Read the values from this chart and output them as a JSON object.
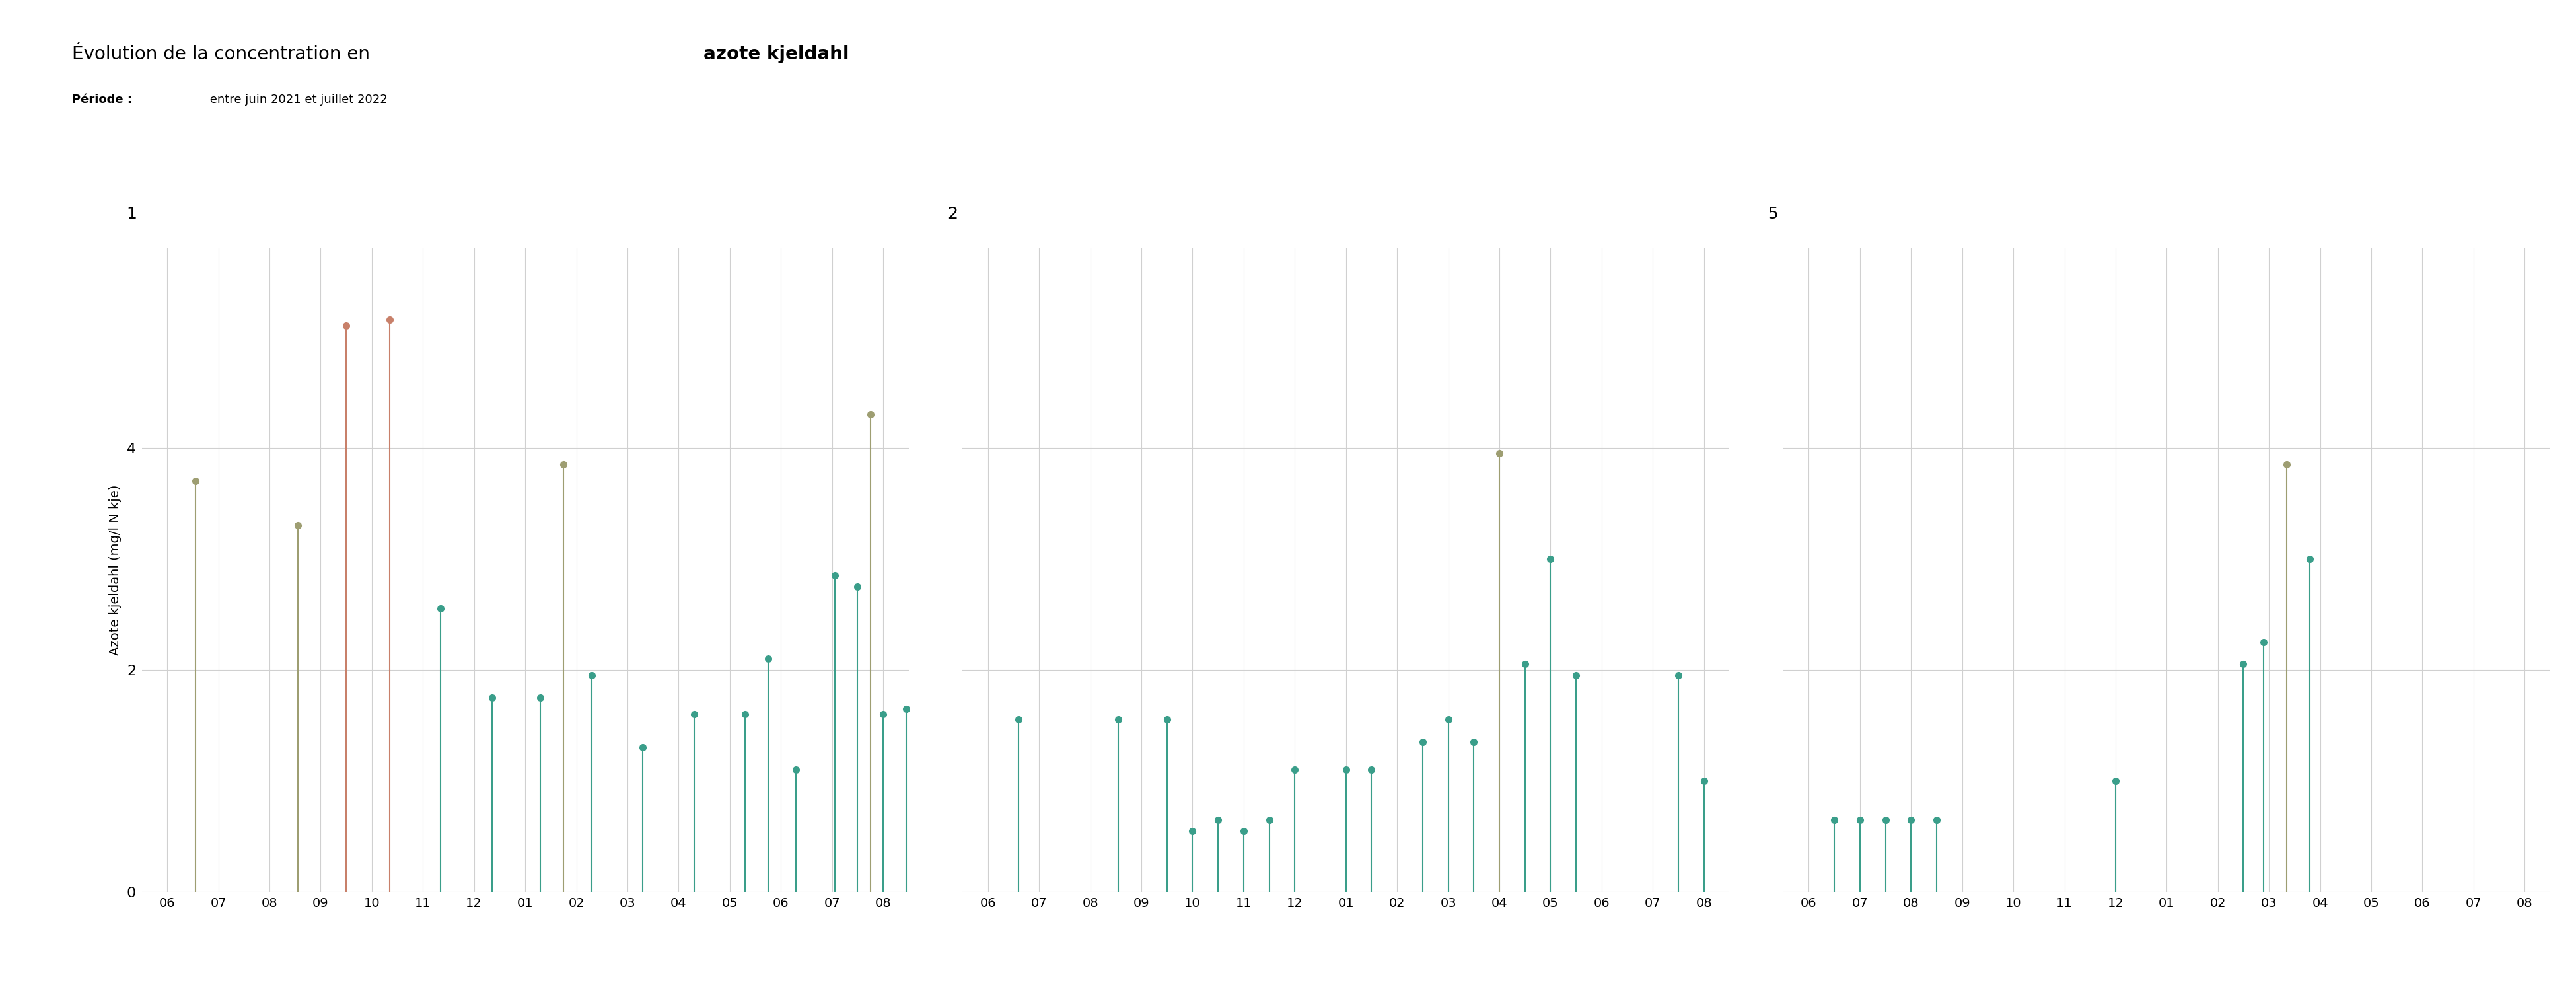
{
  "title_plain": "Évolution de la concentration en ",
  "title_bold": "azote kjeldahl",
  "subtitle_bold": "Période :",
  "subtitle_plain": " entre juin 2021 et juillet 2022",
  "ylabel": "Azote kjeldahl (mg/l N kje)",
  "xtick_labels": [
    "06",
    "07",
    "08",
    "09",
    "10",
    "11",
    "12",
    "01",
    "02",
    "03",
    "04",
    "05",
    "06",
    "07",
    "08"
  ],
  "ylim": [
    0,
    5.8
  ],
  "yticks": [
    0,
    2,
    4
  ],
  "background_color": "#ffffff",
  "grid_color": "#d0d0d0",
  "color_salmon": "#c8806a",
  "color_olive": "#9e9e72",
  "color_teal": "#3a9e8a",
  "panel1": {
    "x_indices": [
      0.55,
      2.55,
      3.5,
      4.35,
      5.35,
      6.35,
      7.3,
      8.3,
      9.3,
      10.3,
      11.3,
      11.75,
      12.3,
      13.05,
      13.5,
      14.0,
      14.45,
      13.75,
      7.75
    ],
    "values": [
      3.7,
      3.3,
      5.1,
      5.15,
      2.55,
      1.75,
      1.75,
      1.95,
      1.3,
      1.6,
      1.6,
      2.1,
      1.1,
      2.85,
      2.75,
      1.6,
      1.65,
      4.3,
      3.85
    ],
    "colors": [
      "#9e9e72",
      "#9e9e72",
      "#c8806a",
      "#c8806a",
      "#3a9e8a",
      "#3a9e8a",
      "#3a9e8a",
      "#3a9e8a",
      "#3a9e8a",
      "#3a9e8a",
      "#3a9e8a",
      "#3a9e8a",
      "#3a9e8a",
      "#3a9e8a",
      "#3a9e8a",
      "#3a9e8a",
      "#3a9e8a",
      "#9e9e72",
      "#9e9e72"
    ]
  },
  "panel2": {
    "x_indices": [
      0.6,
      2.55,
      3.5,
      4.0,
      4.5,
      5.0,
      5.5,
      6.0,
      7.0,
      7.5,
      8.5,
      9.0,
      9.5,
      10.0,
      10.5,
      11.0,
      11.5,
      13.5,
      14.0
    ],
    "values": [
      1.55,
      1.55,
      1.55,
      0.55,
      0.65,
      0.55,
      0.65,
      1.1,
      1.1,
      1.1,
      1.35,
      1.55,
      1.35,
      3.95,
      2.05,
      3.0,
      1.95,
      1.95,
      1.0
    ],
    "colors": [
      "#3a9e8a",
      "#3a9e8a",
      "#3a9e8a",
      "#3a9e8a",
      "#3a9e8a",
      "#3a9e8a",
      "#3a9e8a",
      "#3a9e8a",
      "#3a9e8a",
      "#3a9e8a",
      "#3a9e8a",
      "#3a9e8a",
      "#3a9e8a",
      "#9e9e72",
      "#3a9e8a",
      "#3a9e8a",
      "#3a9e8a",
      "#3a9e8a",
      "#3a9e8a"
    ]
  },
  "panel5": {
    "x_indices": [
      0.5,
      1.0,
      1.5,
      2.0,
      2.5,
      6.0,
      8.5,
      8.9,
      9.35,
      9.8
    ],
    "values": [
      0.65,
      0.65,
      0.65,
      0.65,
      0.65,
      1.0,
      2.05,
      2.25,
      3.85,
      3.0
    ],
    "colors": [
      "#3a9e8a",
      "#3a9e8a",
      "#3a9e8a",
      "#3a9e8a",
      "#3a9e8a",
      "#3a9e8a",
      "#3a9e8a",
      "#3a9e8a",
      "#9e9e72",
      "#3a9e8a"
    ]
  }
}
